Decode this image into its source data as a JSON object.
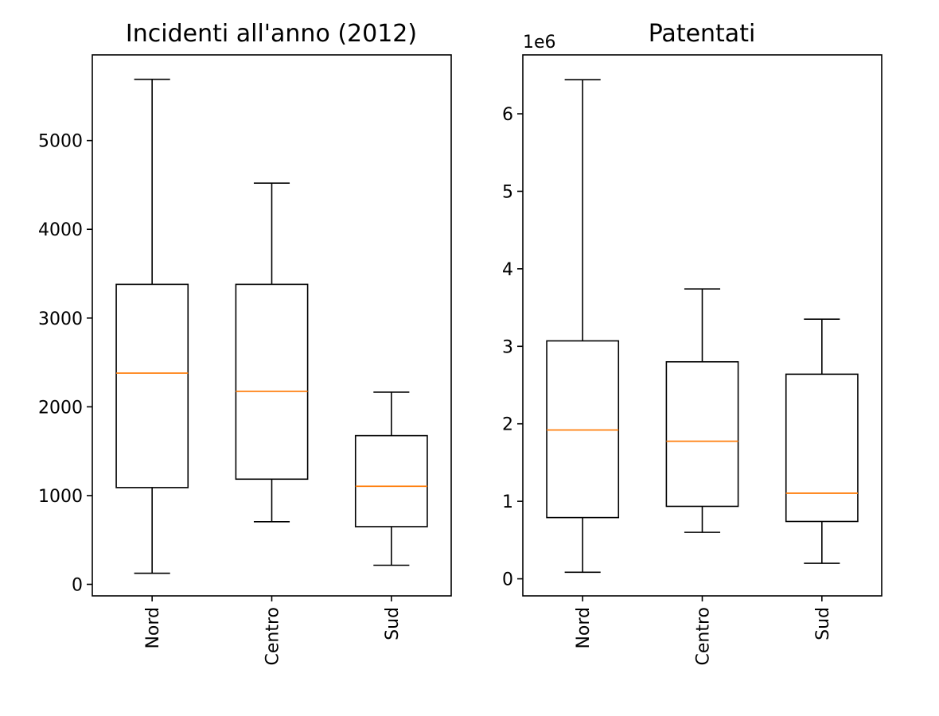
{
  "chart_data": [
    {
      "type": "boxplot",
      "title": "Incidenti all'anno (2012)",
      "categories": [
        "Nord",
        "Centro",
        "Sud"
      ],
      "boxes": [
        {
          "category": "Nord",
          "whisker_low": 125,
          "q1": 1090,
          "median": 2380,
          "q3": 3380,
          "whisker_high": 5690
        },
        {
          "category": "Centro",
          "whisker_low": 705,
          "q1": 1185,
          "median": 2175,
          "q3": 3380,
          "whisker_high": 4520
        },
        {
          "category": "Sud",
          "whisker_low": 215,
          "q1": 650,
          "median": 1105,
          "q3": 1675,
          "whisker_high": 2165
        }
      ],
      "ylim": [
        -130,
        5965
      ],
      "yticks": [
        0,
        1000,
        2000,
        3000,
        4000,
        5000
      ],
      "ytick_labels": [
        "0",
        "1000",
        "2000",
        "3000",
        "4000",
        "5000"
      ],
      "y_offset_label": "",
      "colors": {
        "box": "#000000",
        "median": "#ff7f0e"
      },
      "grid": false
    },
    {
      "type": "boxplot",
      "title": "Patentati",
      "categories": [
        "Nord",
        "Centro",
        "Sud"
      ],
      "boxes": [
        {
          "category": "Nord",
          "whisker_low": 85000,
          "q1": 790000,
          "median": 1920000,
          "q3": 3070000,
          "whisker_high": 6440000
        },
        {
          "category": "Centro",
          "whisker_low": 600000,
          "q1": 935000,
          "median": 1775000,
          "q3": 2800000,
          "whisker_high": 3740000
        },
        {
          "category": "Sud",
          "whisker_low": 200000,
          "q1": 740000,
          "median": 1105000,
          "q3": 2640000,
          "whisker_high": 3350000
        }
      ],
      "ylim": [
        -220000,
        6760000
      ],
      "yticks": [
        0,
        1000000,
        2000000,
        3000000,
        4000000,
        5000000,
        6000000
      ],
      "ytick_labels": [
        "0",
        "1",
        "2",
        "3",
        "4",
        "5",
        "6"
      ],
      "y_offset_label": "1e6",
      "colors": {
        "box": "#000000",
        "median": "#ff7f0e"
      },
      "grid": false
    }
  ]
}
